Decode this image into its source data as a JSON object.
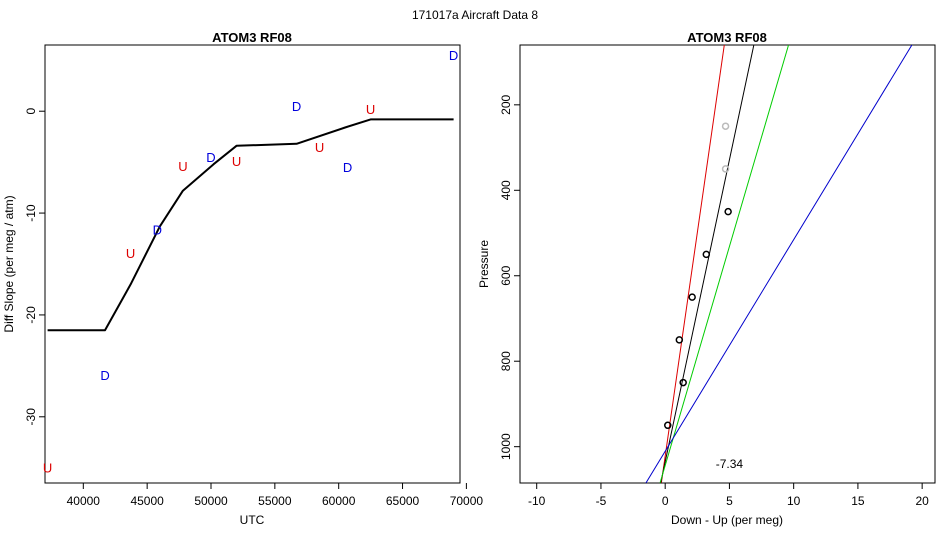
{
  "figure": {
    "super_title": "171017a   Aircraft Data 8"
  },
  "chart_data": [
    {
      "type": "line",
      "title": "ATOM3 RF08",
      "xlabel": "UTC",
      "ylabel": "Diff Slope (per meg / atm)",
      "xlim": [
        37000,
        69500
      ],
      "ylim": [
        -36.5,
        6.5
      ],
      "xticks": [
        40000,
        45000,
        50000,
        55000,
        60000,
        65000,
        70000
      ],
      "yticks": [
        0,
        -10,
        -20,
        -30
      ],
      "grid": false,
      "line": {
        "color": "#000000",
        "points": [
          {
            "x": 37200,
            "y": -21.5
          },
          {
            "x": 41700,
            "y": -21.5
          },
          {
            "x": 43700,
            "y": -17.0
          },
          {
            "x": 46000,
            "y": -11.3
          },
          {
            "x": 47800,
            "y": -7.8
          },
          {
            "x": 50200,
            "y": -5.2
          },
          {
            "x": 52000,
            "y": -3.4
          },
          {
            "x": 56700,
            "y": -3.2
          },
          {
            "x": 60500,
            "y": -1.6
          },
          {
            "x": 62500,
            "y": -0.8
          },
          {
            "x": 69000,
            "y": -0.8
          }
        ]
      },
      "letters": [
        {
          "text": "U",
          "x": 37200,
          "y": -35.0,
          "color": "#dd0000"
        },
        {
          "text": "D",
          "x": 41700,
          "y": -25.9,
          "color": "#0000dd"
        },
        {
          "text": "U",
          "x": 43700,
          "y": -13.9,
          "color": "#dd0000"
        },
        {
          "text": "D",
          "x": 45800,
          "y": -11.6,
          "color": "#0000dd"
        },
        {
          "text": "U",
          "x": 47800,
          "y": -5.4,
          "color": "#dd0000"
        },
        {
          "text": "D",
          "x": 50000,
          "y": -4.5,
          "color": "#0000dd"
        },
        {
          "text": "U",
          "x": 52000,
          "y": -4.9,
          "color": "#dd0000"
        },
        {
          "text": "D",
          "x": 56700,
          "y": 0.5,
          "color": "#0000dd"
        },
        {
          "text": "U",
          "x": 58500,
          "y": -3.5,
          "color": "#dd0000"
        },
        {
          "text": "D",
          "x": 60700,
          "y": -5.5,
          "color": "#0000dd"
        },
        {
          "text": "U",
          "x": 62500,
          "y": 0.2,
          "color": "#dd0000"
        },
        {
          "text": "D",
          "x": 69000,
          "y": 5.5,
          "color": "#0000dd"
        }
      ]
    },
    {
      "type": "scatter",
      "title": "ATOM3 RF08",
      "xlabel": "Down - Up (per meg)",
      "ylabel": "Pressure",
      "xlim": [
        -11.3,
        21.0
      ],
      "ylim": [
        1085,
        60
      ],
      "y_reversed": true,
      "xticks": [
        -10,
        -5,
        0,
        5,
        10,
        15,
        20
      ],
      "yticks": [
        200,
        400,
        600,
        800,
        1000
      ],
      "grid": false,
      "annotation": {
        "text": "-7.34",
        "x": 5.0,
        "y": 1040
      },
      "points": [
        {
          "x": 0.2,
          "y": 950,
          "color": "#000000"
        },
        {
          "x": 1.4,
          "y": 850,
          "color": "#000000"
        },
        {
          "x": 1.1,
          "y": 750,
          "color": "#000000"
        },
        {
          "x": 2.1,
          "y": 650,
          "color": "#000000"
        },
        {
          "x": 3.2,
          "y": 550,
          "color": "#000000"
        },
        {
          "x": 4.9,
          "y": 450,
          "color": "#000000"
        },
        {
          "x": 4.7,
          "y": 350,
          "color": "#bbbbbb"
        },
        {
          "x": 4.7,
          "y": 250,
          "color": "#bbbbbb"
        }
      ],
      "fit_lines": [
        {
          "color": "#dd0000",
          "p1": {
            "x": -0.3,
            "y": 1085
          },
          "p2": {
            "x": 4.6,
            "y": 60
          }
        },
        {
          "color": "#000000",
          "p1": {
            "x": -0.35,
            "y": 1085
          },
          "p2": {
            "x": 6.9,
            "y": 60
          }
        },
        {
          "color": "#00cc00",
          "p1": {
            "x": -0.4,
            "y": 1085
          },
          "p2": {
            "x": 9.6,
            "y": 60
          }
        },
        {
          "color": "#0000cc",
          "p1": {
            "x": -1.5,
            "y": 1085
          },
          "p2": {
            "x": 19.2,
            "y": 60
          }
        }
      ]
    }
  ]
}
